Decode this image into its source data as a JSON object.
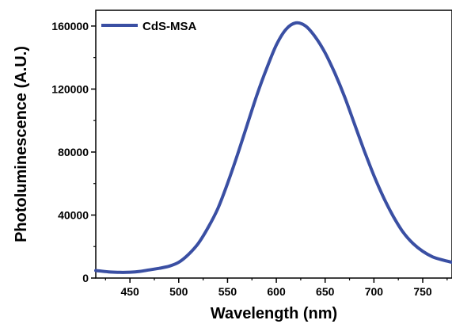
{
  "chart_data": {
    "type": "line",
    "xlabel": "Wavelength (nm)",
    "ylabel": "Photoluminescence (A.U.)",
    "xlim": [
      415,
      780
    ],
    "ylim": [
      0,
      170000
    ],
    "x_ticks": [
      450,
      500,
      550,
      600,
      650,
      700,
      750
    ],
    "y_ticks": [
      0,
      40000,
      80000,
      120000,
      160000
    ],
    "grid": false,
    "legend_position": "top-left",
    "series": [
      {
        "name": "CdS-MSA",
        "color": "#3a4fa3",
        "x": [
          415,
          430,
          440,
          450,
          460,
          470,
          480,
          490,
          500,
          510,
          520,
          530,
          540,
          550,
          560,
          570,
          580,
          590,
          600,
          610,
          620,
          630,
          640,
          650,
          660,
          670,
          680,
          690,
          700,
          710,
          720,
          730,
          740,
          750,
          760,
          770,
          780
        ],
        "y": [
          4800,
          3800,
          3600,
          3700,
          4200,
          5200,
          6200,
          7500,
          10000,
          15000,
          22000,
          32000,
          44000,
          60000,
          78000,
          97000,
          116000,
          133000,
          148000,
          158000,
          162000,
          160000,
          153000,
          143000,
          130000,
          115000,
          98000,
          81000,
          65000,
          51000,
          39000,
          29000,
          22000,
          17000,
          13500,
          11500,
          10000
        ]
      }
    ]
  }
}
